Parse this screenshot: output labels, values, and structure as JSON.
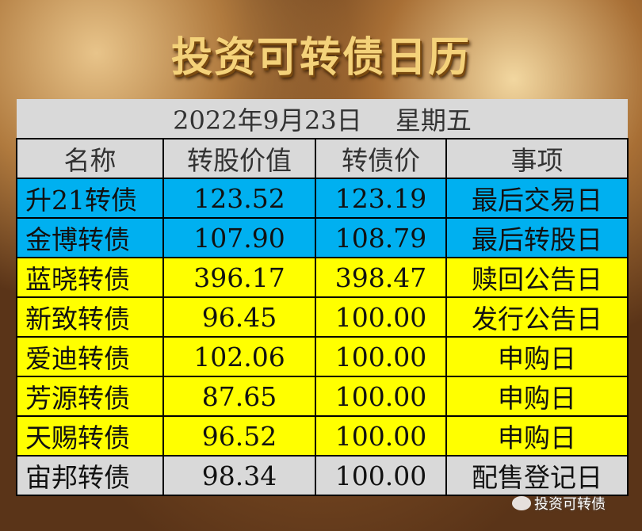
{
  "title": "投资可转债日历",
  "date_line": "2022年9月23日　 星期五",
  "headers": [
    "名称",
    "转股价值",
    "转债价",
    "事项"
  ],
  "rows": [
    {
      "name": "升21转债",
      "conv_value": "123.52",
      "price": "123.19",
      "event": "最后交易日",
      "color": "blue"
    },
    {
      "name": "金博转债",
      "conv_value": "107.90",
      "price": "108.79",
      "event": "最后转股日",
      "color": "blue"
    },
    {
      "name": "蓝晓转债",
      "conv_value": "396.17",
      "price": "398.47",
      "event": "赎回公告日",
      "color": "yellow"
    },
    {
      "name": "新致转债",
      "conv_value": "96.45",
      "price": "100.00",
      "event": "发行公告日",
      "color": "yellow"
    },
    {
      "name": "爱迪转债",
      "conv_value": "102.06",
      "price": "100.00",
      "event": "申购日",
      "color": "yellow"
    },
    {
      "name": "芳源转债",
      "conv_value": "87.65",
      "price": "100.00",
      "event": "申购日",
      "color": "yellow"
    },
    {
      "name": "天赐转债",
      "conv_value": "96.52",
      "price": "100.00",
      "event": "申购日",
      "color": "yellow"
    },
    {
      "name": "宙邦转债",
      "conv_value": "98.34",
      "price": "100.00",
      "event": "配售登记日",
      "color": "gray"
    }
  ],
  "colors": {
    "blue": "#00b0f0",
    "yellow": "#ffff00",
    "gray": "#d9d9d9"
  },
  "watermark": {
    "icon": "wechat-icon",
    "text": "投资可转债"
  }
}
